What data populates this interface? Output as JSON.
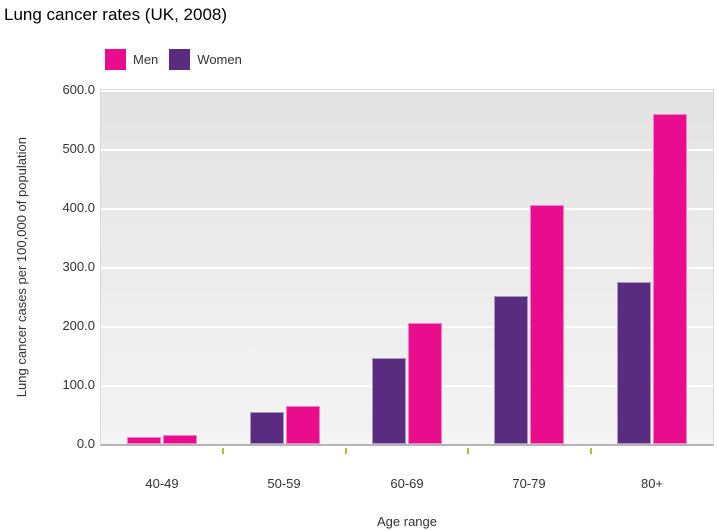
{
  "title": "Lung cancer rates (UK, 2008)",
  "chart_data": {
    "type": "bar",
    "title": "Lung cancer rates (UK, 2008)",
    "categories": [
      "40-49",
      "50-59",
      "60-69",
      "70-79",
      "80+"
    ],
    "series": [
      {
        "name": "Men",
        "color": "#e90d8d",
        "border_color": "#f282c4",
        "values": [
          15,
          65,
          205,
          405,
          560
        ]
      },
      {
        "name": "Women",
        "color": "#5a2c7f",
        "border_color": "#ab97c4",
        "values": [
          12,
          55,
          145,
          250,
          275
        ]
      }
    ],
    "bar_order_in_group": [
      "Women",
      "Men"
    ],
    "color_overrides": [
      {
        "series": "Women",
        "category": "40-49",
        "color": "#e90d8d",
        "border_color": "#f282c4"
      }
    ],
    "xlabel": "Age range",
    "ylabel": "Lung cancer cases per 100,000 of population",
    "ylim": [
      0,
      600
    ],
    "ytick_step": 100,
    "ytick_labels": [
      "600.0",
      "500.0",
      "400.0",
      "300.0",
      "200.0",
      "100.0",
      "0.0"
    ],
    "grid": "horizontal-white-on-gray",
    "legend_position": "top-left",
    "legend_labels": [
      "Men",
      "Women"
    ],
    "plot_background": "#e9e9e9",
    "gridline_color": "#ffffff",
    "baseline_color": "#b5b5b5",
    "x_tick_color": "#a8c32f"
  }
}
